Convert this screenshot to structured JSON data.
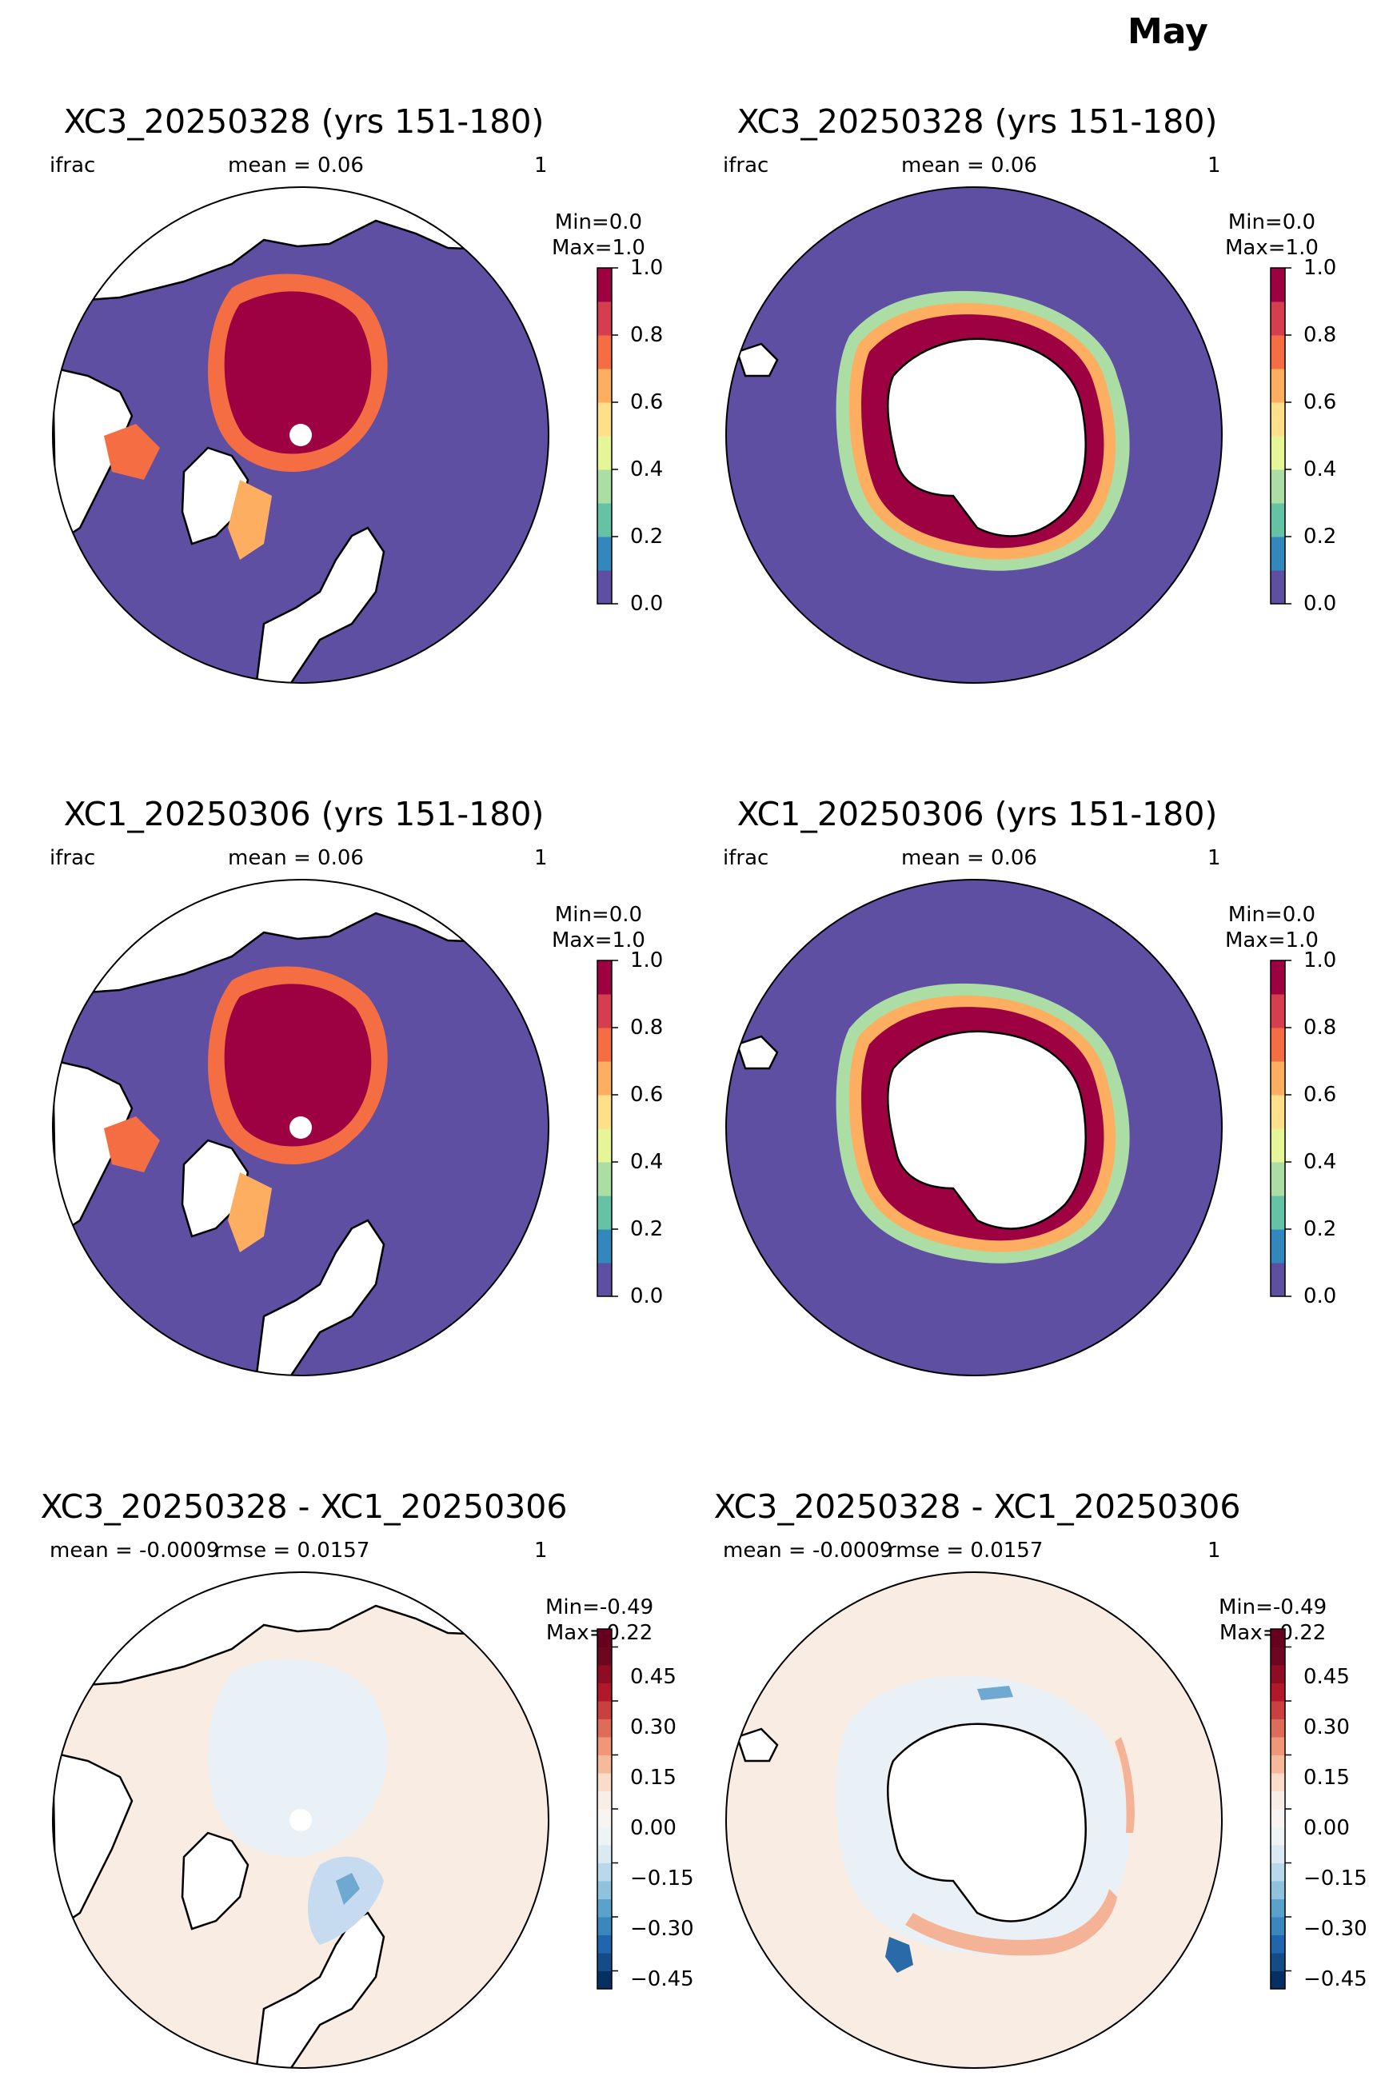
{
  "figure": {
    "title": "May"
  },
  "chart_data": [
    {
      "type": "heatmap",
      "hemisphere": "north",
      "title": "XC3_20250328 (yrs 151-180)",
      "labels": {
        "left": "ifrac",
        "center": "mean = 0.06",
        "right": "1"
      },
      "colorbar": {
        "title": "Min=0.0\nMax=1.0",
        "ticks": [
          "0.0",
          "0.2",
          "0.4",
          "0.6",
          "0.8",
          "1.0"
        ],
        "range": [
          0.0,
          1.0
        ],
        "levels": 10,
        "colormap": "Spectral_r"
      }
    },
    {
      "type": "heatmap",
      "hemisphere": "south",
      "title": "XC3_20250328 (yrs 151-180)",
      "labels": {
        "left": "ifrac",
        "center": "mean = 0.06",
        "right": "1"
      },
      "colorbar": {
        "title": "Min=0.0\nMax=1.0",
        "ticks": [
          "0.0",
          "0.2",
          "0.4",
          "0.6",
          "0.8",
          "1.0"
        ],
        "range": [
          0.0,
          1.0
        ],
        "levels": 10,
        "colormap": "Spectral_r"
      }
    },
    {
      "type": "heatmap",
      "hemisphere": "north",
      "title": "XC1_20250306 (yrs 151-180)",
      "labels": {
        "left": "ifrac",
        "center": "mean = 0.06",
        "right": "1"
      },
      "colorbar": {
        "title": "Min=0.0\nMax=1.0",
        "ticks": [
          "0.0",
          "0.2",
          "0.4",
          "0.6",
          "0.8",
          "1.0"
        ],
        "range": [
          0.0,
          1.0
        ],
        "levels": 10,
        "colormap": "Spectral_r"
      }
    },
    {
      "type": "heatmap",
      "hemisphere": "south",
      "title": "XC1_20250306 (yrs 151-180)",
      "labels": {
        "left": "ifrac",
        "center": "mean = 0.06",
        "right": "1"
      },
      "colorbar": {
        "title": "Min=0.0\nMax=1.0",
        "ticks": [
          "0.0",
          "0.2",
          "0.4",
          "0.6",
          "0.8",
          "1.0"
        ],
        "range": [
          0.0,
          1.0
        ],
        "levels": 10,
        "colormap": "Spectral_r"
      }
    },
    {
      "type": "heatmap",
      "hemisphere": "north",
      "title": "XC3_20250328 - XC1_20250306",
      "labels": {
        "left": "mean = -0.0009",
        "center": "rmse = 0.0157",
        "right": "1"
      },
      "colorbar": {
        "title": "Min=-0.49\nMax=0.22",
        "ticks": [
          "−0.45",
          "−0.30",
          "−0.15",
          "0.00",
          "0.15",
          "0.30",
          "0.45"
        ],
        "range": [
          -0.5,
          0.5
        ],
        "levels": 20,
        "colormap": "RdBu_r"
      }
    },
    {
      "type": "heatmap",
      "hemisphere": "south",
      "title": "XC3_20250328 - XC1_20250306",
      "labels": {
        "left": "mean = -0.0009",
        "center": "rmse = 0.0157",
        "right": "1"
      },
      "colorbar": {
        "title": "Min=-0.49\nMax=0.22",
        "ticks": [
          "−0.45",
          "−0.30",
          "−0.15",
          "0.00",
          "0.15",
          "0.30",
          "0.45"
        ],
        "range": [
          -0.5,
          0.5
        ],
        "levels": 20,
        "colormap": "RdBu_r"
      }
    }
  ]
}
